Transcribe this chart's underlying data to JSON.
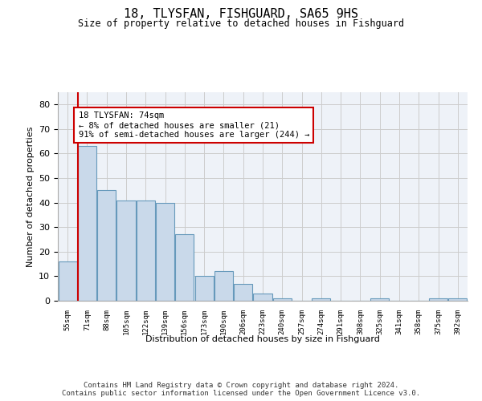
{
  "title1": "18, TLYSFAN, FISHGUARD, SA65 9HS",
  "title2": "Size of property relative to detached houses in Fishguard",
  "xlabel": "Distribution of detached houses by size in Fishguard",
  "ylabel": "Number of detached properties",
  "categories": [
    "55sqm",
    "71sqm",
    "88sqm",
    "105sqm",
    "122sqm",
    "139sqm",
    "156sqm",
    "173sqm",
    "190sqm",
    "206sqm",
    "223sqm",
    "240sqm",
    "257sqm",
    "274sqm",
    "291sqm",
    "308sqm",
    "325sqm",
    "341sqm",
    "358sqm",
    "375sqm",
    "392sqm"
  ],
  "values": [
    16,
    63,
    45,
    41,
    41,
    40,
    27,
    10,
    12,
    7,
    3,
    1,
    0,
    1,
    0,
    0,
    1,
    0,
    0,
    1,
    1
  ],
  "bar_color": "#c9d9ea",
  "bar_edge_color": "#6699bb",
  "marker_line_color": "#cc0000",
  "annotation_text": "18 TLYSFAN: 74sqm\n← 8% of detached houses are smaller (21)\n91% of semi-detached houses are larger (244) →",
  "annotation_box_color": "#ffffff",
  "annotation_box_edge_color": "#cc0000",
  "ylim": [
    0,
    85
  ],
  "yticks": [
    0,
    10,
    20,
    30,
    40,
    50,
    60,
    70,
    80
  ],
  "grid_color": "#cccccc",
  "footer_text": "Contains HM Land Registry data © Crown copyright and database right 2024.\nContains public sector information licensed under the Open Government Licence v3.0.",
  "bg_color": "#ffffff",
  "plot_bg_color": "#eef2f8"
}
